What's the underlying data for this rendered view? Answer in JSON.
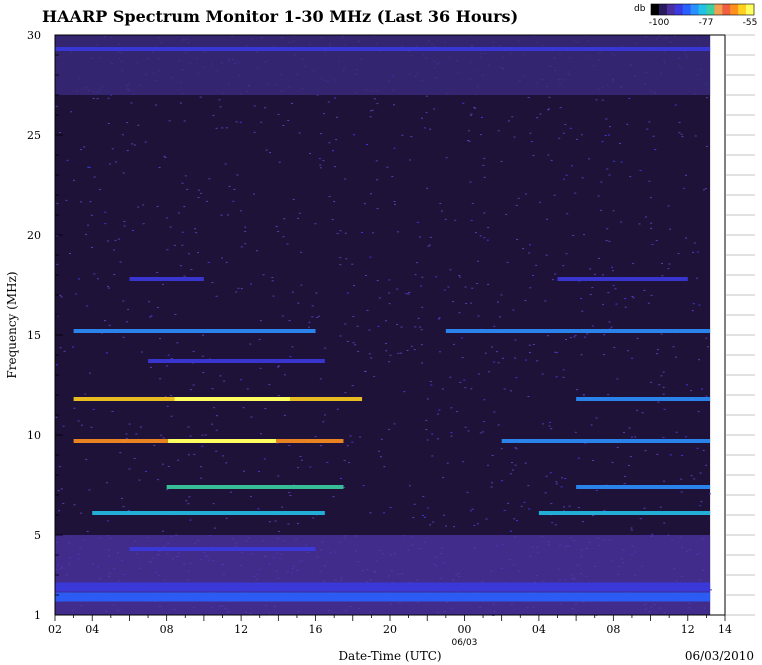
{
  "page": {
    "title": "HAARP Spectrum Monitor 1-30 MHz (Last 36 Hours)",
    "footer_date": "06/03/2010"
  },
  "colorbar": {
    "unit": "db",
    "ticks": [
      "-100",
      "-77",
      "-55"
    ],
    "colors": [
      "#000000",
      "#2a1a5e",
      "#4a2fa0",
      "#3a3adf",
      "#2a60ff",
      "#2a90ff",
      "#23c0e8",
      "#3ad0a0",
      "#f0a050",
      "#f06040",
      "#ff9020",
      "#ffd020",
      "#ffff60"
    ]
  },
  "chart_data": {
    "type": "heatmap",
    "title": "HAARP Spectrum Monitor 1-30 MHz (Last 36 Hours)",
    "xlabel": "Date-Time (UTC)",
    "ylabel": "Frequency (MHz)",
    "x_tick_labels": [
      "02",
      "04",
      "08",
      "12",
      "16",
      "20",
      "00",
      "04",
      "08",
      "12",
      "14"
    ],
    "x_date_marker": "06/03",
    "y_ticks": [
      1,
      5,
      10,
      15,
      20,
      25,
      30
    ],
    "ylim": [
      1,
      30
    ],
    "x_range_hours": [
      2,
      38
    ],
    "db_range": [
      -100,
      -55
    ],
    "bands": [
      {
        "freq_mhz": 1.9,
        "start_h": 2,
        "end_h": 37.2,
        "db": -85
      },
      {
        "freq_mhz": 2.4,
        "start_h": 2,
        "end_h": 37.2,
        "db": -88
      },
      {
        "freq_mhz": 4.3,
        "start_h": 6,
        "end_h": 16,
        "db": -90
      },
      {
        "freq_mhz": 6.1,
        "start_h": 4,
        "end_h": 16.5,
        "db": -78
      },
      {
        "freq_mhz": 7.4,
        "start_h": 8,
        "end_h": 17.5,
        "db": -72
      },
      {
        "freq_mhz": 9.7,
        "start_h": 3,
        "end_h": 17.5,
        "db": -62
      },
      {
        "freq_mhz": 11.8,
        "start_h": 3,
        "end_h": 18.5,
        "db": -60
      },
      {
        "freq_mhz": 13.7,
        "start_h": 7,
        "end_h": 16.5,
        "db": -88
      },
      {
        "freq_mhz": 15.2,
        "start_h": 3,
        "end_h": 16,
        "db": -80
      },
      {
        "freq_mhz": 17.8,
        "start_h": 6,
        "end_h": 10,
        "db": -90
      },
      {
        "freq_mhz": 6.1,
        "start_h": 28,
        "end_h": 37.2,
        "db": -78
      },
      {
        "freq_mhz": 7.4,
        "start_h": 30,
        "end_h": 37.2,
        "db": -80
      },
      {
        "freq_mhz": 9.7,
        "start_h": 26,
        "end_h": 37.2,
        "db": -82
      },
      {
        "freq_mhz": 11.8,
        "start_h": 30,
        "end_h": 37.2,
        "db": -80
      },
      {
        "freq_mhz": 15.2,
        "start_h": 23,
        "end_h": 37.2,
        "db": -82
      },
      {
        "freq_mhz": 17.8,
        "start_h": 29,
        "end_h": 36,
        "db": -88
      },
      {
        "freq_mhz": 29.3,
        "start_h": 2,
        "end_h": 37.2,
        "db": -88
      }
    ]
  }
}
